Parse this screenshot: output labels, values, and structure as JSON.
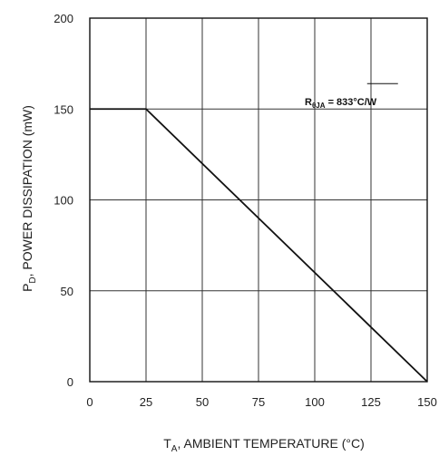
{
  "chart_data": {
    "type": "line",
    "x": [
      0,
      25,
      150
    ],
    "series": [
      {
        "values": [
          150,
          150,
          0
        ]
      }
    ],
    "xlim": [
      0,
      150
    ],
    "ylim": [
      0,
      200
    ],
    "xticks": [
      0,
      25,
      50,
      75,
      100,
      125,
      150
    ],
    "yticks": [
      0,
      50,
      100,
      150,
      200
    ],
    "xlabel": {
      "main": "T",
      "sub": "A",
      "rest": ", AMBIENT TEMPERATURE (°C)"
    },
    "ylabel": {
      "main": "P",
      "sub": "D",
      "rest": ", POWER DISSIPATION (mW)"
    },
    "annotation": {
      "main": "R",
      "sub": "θJA",
      "rest": " = 833°C/W",
      "x": 112,
      "y": 150
    },
    "grid": true,
    "colors": {
      "line": "#111111",
      "grid": "#333333"
    }
  }
}
